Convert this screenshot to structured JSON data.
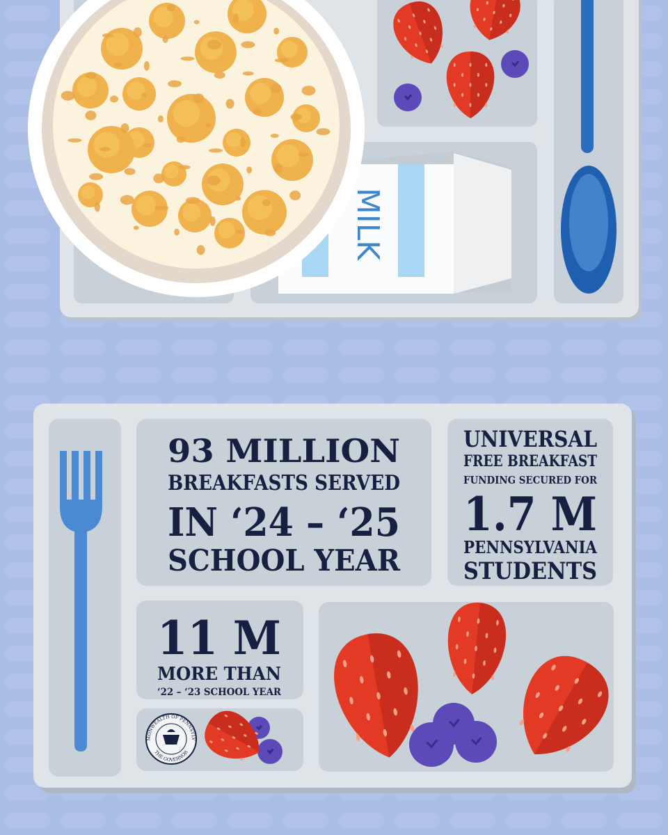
{
  "top_tray": {
    "milk_label": "MILK"
  },
  "stats": {
    "breakfasts_served": {
      "headline": "93 MILLION",
      "line_1": "BREAKFASTS SERVED",
      "line_2": "IN ‘24 – ‘25",
      "line_3": "SCHOOL YEAR"
    },
    "students": {
      "line_1": "UNIVERSAL",
      "line_2": "FREE BREAKFAST",
      "line_3": "FUNDING SECURED FOR",
      "headline": "1.7 M",
      "line_4": "PENNSYLVANIA",
      "line_5": "STUDENTS"
    },
    "increase": {
      "headline": "11 M",
      "line_1": "MORE THAN",
      "line_2": "‘22 – ‘23 SCHOOL YEAR"
    }
  },
  "seal": {
    "top_text": "COMMONWEALTH OF PENNSYLVANIA",
    "bottom_text": "THE GOVERNOR"
  }
}
